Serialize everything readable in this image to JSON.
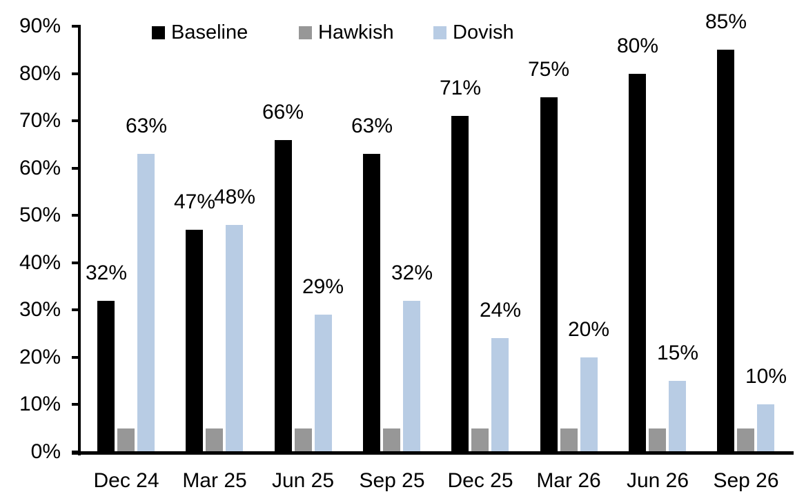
{
  "chart_data": {
    "type": "bar",
    "categories": [
      "Dec 24",
      "Mar 25",
      "Jun 25",
      "Sep 25",
      "Dec 25",
      "Mar 26",
      "Jun 26",
      "Sep 26"
    ],
    "series": [
      {
        "name": "Baseline",
        "color": "#000000",
        "values": [
          32,
          47,
          66,
          63,
          71,
          75,
          80,
          85
        ],
        "data_labels": true
      },
      {
        "name": "Hawkish",
        "color": "#979797",
        "values": [
          5,
          5,
          5,
          5,
          5,
          5,
          5,
          5
        ],
        "data_labels": false
      },
      {
        "name": "Dovish",
        "color": "#B8CCE4",
        "values": [
          63,
          48,
          29,
          32,
          24,
          20,
          15,
          10
        ],
        "data_labels": true
      }
    ],
    "title": "",
    "xlabel": "",
    "ylabel": "",
    "ylim": [
      0,
      90
    ],
    "y_tick_labels": [
      "0%",
      "10%",
      "20%",
      "30%",
      "40%",
      "50%",
      "60%",
      "70%",
      "80%",
      "90%"
    ],
    "data_label_format": "percent",
    "grid": false,
    "legend_position": "top",
    "axis_color": "#000000",
    "text_color": "#000000",
    "background_color": "#ffffff"
  }
}
